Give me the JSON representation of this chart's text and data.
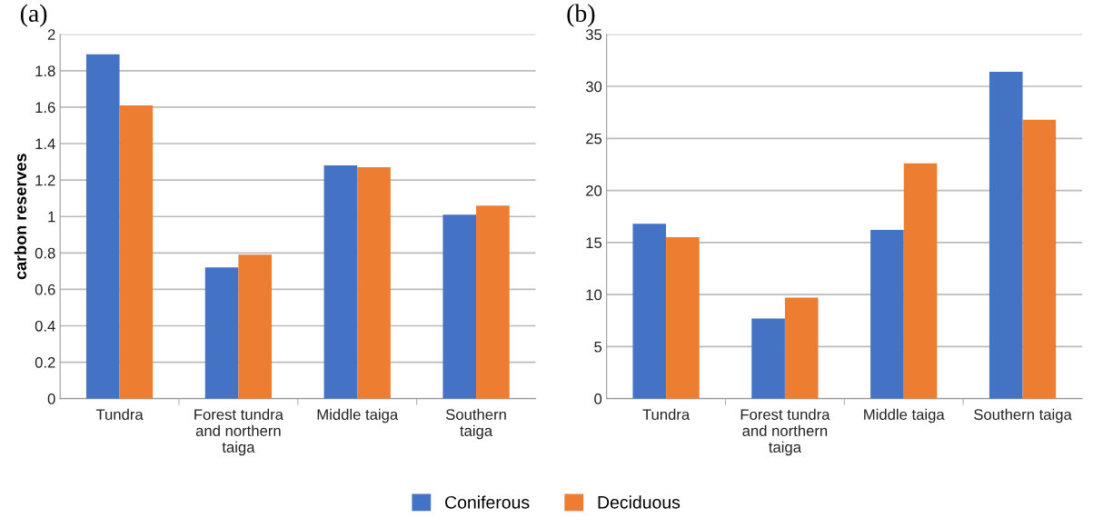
{
  "chart_data": [
    {
      "type": "bar",
      "title": "(a)",
      "ylabel": "carbon reserves",
      "categories": [
        "Tundra",
        "Forest tundra\nand northern\ntaiga",
        "Middle taiga",
        "Southern\ntaiga"
      ],
      "series": [
        {
          "name": "Coniferous",
          "color": "#4472c4",
          "values": [
            1.89,
            0.72,
            1.28,
            1.01
          ]
        },
        {
          "name": "Deciduous",
          "color": "#ed7d31",
          "values": [
            1.61,
            0.79,
            1.27,
            1.06
          ]
        }
      ],
      "ylim": [
        0,
        2
      ],
      "yticks": [
        0,
        0.2,
        0.4,
        0.6,
        0.8,
        1,
        1.2,
        1.4,
        1.6,
        1.8,
        2
      ],
      "grid": "y",
      "legend": "bottom"
    },
    {
      "type": "bar",
      "title": "(b)",
      "categories": [
        "Tundra",
        "Forest tundra\nand northern\ntaiga",
        "Middle taiga",
        "Southern taiga"
      ],
      "series": [
        {
          "name": "Coniferous",
          "color": "#4472c4",
          "values": [
            16.8,
            7.7,
            16.2,
            31.4
          ]
        },
        {
          "name": "Deciduous",
          "color": "#ed7d31",
          "values": [
            15.5,
            9.7,
            22.6,
            26.8
          ]
        }
      ],
      "ylim": [
        0,
        35
      ],
      "yticks": [
        0,
        5,
        10,
        15,
        20,
        25,
        30,
        35
      ],
      "grid": "y"
    }
  ]
}
